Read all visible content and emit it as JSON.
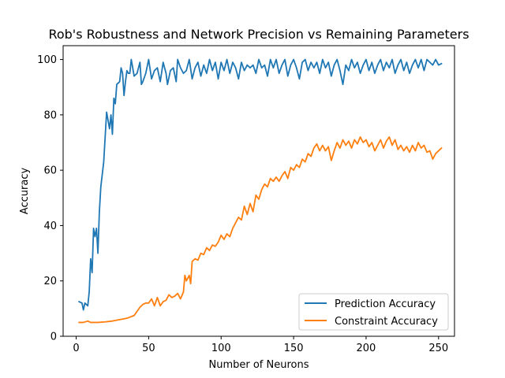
{
  "chart_data": {
    "type": "line",
    "title": "Rob's Robustness and Network Precision vs Remaining Parameters",
    "xlabel": "Number of Neurons",
    "ylabel": "Accuracy",
    "xlim": [
      -9,
      261
    ],
    "ylim": [
      0,
      105
    ],
    "xticks": [
      0,
      50,
      100,
      150,
      200,
      250
    ],
    "yticks": [
      0,
      20,
      40,
      60,
      80,
      100
    ],
    "grid": false,
    "legend_position": "lower-right",
    "series": [
      {
        "name": "Prediction Accuracy",
        "color": "#1f77b4",
        "points": [
          [
            2,
            12.5
          ],
          [
            4,
            12
          ],
          [
            5,
            9.5
          ],
          [
            6,
            12
          ],
          [
            8,
            11
          ],
          [
            9,
            16
          ],
          [
            10,
            28
          ],
          [
            11,
            23
          ],
          [
            12,
            39
          ],
          [
            13,
            36
          ],
          [
            14,
            39
          ],
          [
            15,
            30
          ],
          [
            16,
            45
          ],
          [
            17,
            54
          ],
          [
            19,
            63
          ],
          [
            20,
            72
          ],
          [
            21,
            81
          ],
          [
            22,
            78
          ],
          [
            23,
            75
          ],
          [
            24,
            80
          ],
          [
            25,
            73
          ],
          [
            26,
            86
          ],
          [
            27,
            84
          ],
          [
            28,
            91
          ],
          [
            30,
            92
          ],
          [
            31,
            97
          ],
          [
            32,
            95
          ],
          [
            33,
            87
          ],
          [
            34,
            92
          ],
          [
            35,
            96
          ],
          [
            36,
            95
          ],
          [
            37,
            95
          ],
          [
            38,
            100
          ],
          [
            40,
            94
          ],
          [
            42,
            95
          ],
          [
            44,
            99
          ],
          [
            45,
            91
          ],
          [
            46,
            92
          ],
          [
            48,
            95
          ],
          [
            50,
            100
          ],
          [
            52,
            93
          ],
          [
            54,
            96
          ],
          [
            56,
            97
          ],
          [
            58,
            92
          ],
          [
            60,
            99
          ],
          [
            62,
            95
          ],
          [
            63,
            91
          ],
          [
            65,
            96
          ],
          [
            67,
            97
          ],
          [
            69,
            92
          ],
          [
            70,
            100
          ],
          [
            72,
            97
          ],
          [
            74,
            95
          ],
          [
            76,
            96
          ],
          [
            78,
            100
          ],
          [
            80,
            93
          ],
          [
            82,
            97
          ],
          [
            84,
            99
          ],
          [
            86,
            94
          ],
          [
            88,
            98
          ],
          [
            90,
            95
          ],
          [
            92,
            100
          ],
          [
            94,
            96
          ],
          [
            96,
            99
          ],
          [
            98,
            93
          ],
          [
            100,
            99
          ],
          [
            102,
            96
          ],
          [
            104,
            100
          ],
          [
            106,
            95
          ],
          [
            108,
            99
          ],
          [
            110,
            97
          ],
          [
            112,
            93
          ],
          [
            114,
            99
          ],
          [
            116,
            96
          ],
          [
            118,
            98
          ],
          [
            120,
            97
          ],
          [
            122,
            98
          ],
          [
            124,
            95
          ],
          [
            126,
            100
          ],
          [
            128,
            97
          ],
          [
            130,
            98
          ],
          [
            132,
            94
          ],
          [
            134,
            100
          ],
          [
            136,
            97
          ],
          [
            138,
            100
          ],
          [
            140,
            95
          ],
          [
            142,
            98
          ],
          [
            144,
            100
          ],
          [
            146,
            94
          ],
          [
            148,
            98
          ],
          [
            150,
            100
          ],
          [
            152,
            97
          ],
          [
            154,
            93
          ],
          [
            156,
            99
          ],
          [
            158,
            100
          ],
          [
            160,
            96
          ],
          [
            162,
            99
          ],
          [
            164,
            97
          ],
          [
            166,
            99
          ],
          [
            168,
            95
          ],
          [
            170,
            100
          ],
          [
            172,
            97
          ],
          [
            174,
            99
          ],
          [
            176,
            94
          ],
          [
            178,
            98
          ],
          [
            180,
            100
          ],
          [
            182,
            96
          ],
          [
            184,
            91
          ],
          [
            186,
            98
          ],
          [
            188,
            96
          ],
          [
            190,
            100
          ],
          [
            192,
            97
          ],
          [
            194,
            99
          ],
          [
            196,
            95
          ],
          [
            198,
            98
          ],
          [
            200,
            100
          ],
          [
            202,
            96
          ],
          [
            204,
            99
          ],
          [
            206,
            95
          ],
          [
            208,
            98
          ],
          [
            210,
            100
          ],
          [
            212,
            96
          ],
          [
            214,
            99
          ],
          [
            216,
            97
          ],
          [
            218,
            100
          ],
          [
            220,
            95
          ],
          [
            222,
            98
          ],
          [
            224,
            100
          ],
          [
            226,
            96
          ],
          [
            228,
            99
          ],
          [
            230,
            95
          ],
          [
            232,
            98
          ],
          [
            234,
            100
          ],
          [
            236,
            97
          ],
          [
            238,
            100
          ],
          [
            240,
            96
          ],
          [
            242,
            100
          ],
          [
            244,
            99
          ],
          [
            246,
            98
          ],
          [
            248,
            100
          ],
          [
            250,
            98
          ],
          [
            252,
            98.5
          ]
        ]
      },
      {
        "name": "Constraint Accuracy",
        "color": "#ff7f0e",
        "points": [
          [
            2,
            5
          ],
          [
            5,
            5
          ],
          [
            8,
            5.5
          ],
          [
            10,
            5
          ],
          [
            15,
            5
          ],
          [
            20,
            5.2
          ],
          [
            25,
            5.5
          ],
          [
            30,
            6
          ],
          [
            35,
            6.5
          ],
          [
            40,
            7.5
          ],
          [
            42,
            9
          ],
          [
            44,
            10.5
          ],
          [
            46,
            11.5
          ],
          [
            48,
            12
          ],
          [
            50,
            12
          ],
          [
            52,
            13.5
          ],
          [
            54,
            11
          ],
          [
            56,
            14
          ],
          [
            58,
            11
          ],
          [
            60,
            12.5
          ],
          [
            62,
            13
          ],
          [
            64,
            15
          ],
          [
            66,
            14
          ],
          [
            68,
            14.5
          ],
          [
            70,
            15.5
          ],
          [
            72,
            13.5
          ],
          [
            74,
            16
          ],
          [
            75,
            22
          ],
          [
            76,
            20
          ],
          [
            78,
            22
          ],
          [
            79,
            19
          ],
          [
            80,
            27
          ],
          [
            82,
            28
          ],
          [
            84,
            27.5
          ],
          [
            86,
            30
          ],
          [
            88,
            29.5
          ],
          [
            90,
            32
          ],
          [
            92,
            31
          ],
          [
            94,
            33
          ],
          [
            96,
            32.5
          ],
          [
            98,
            34
          ],
          [
            100,
            36.5
          ],
          [
            102,
            35
          ],
          [
            104,
            37
          ],
          [
            106,
            36
          ],
          [
            108,
            39
          ],
          [
            110,
            41
          ],
          [
            112,
            43
          ],
          [
            114,
            42
          ],
          [
            116,
            47
          ],
          [
            118,
            44
          ],
          [
            120,
            48
          ],
          [
            122,
            45
          ],
          [
            124,
            51
          ],
          [
            126,
            49.5
          ],
          [
            128,
            53
          ],
          [
            130,
            55
          ],
          [
            132,
            54
          ],
          [
            134,
            57
          ],
          [
            136,
            56
          ],
          [
            138,
            57.5
          ],
          [
            140,
            56
          ],
          [
            142,
            58
          ],
          [
            144,
            59.5
          ],
          [
            146,
            57
          ],
          [
            148,
            61
          ],
          [
            150,
            60
          ],
          [
            152,
            62
          ],
          [
            154,
            61
          ],
          [
            156,
            64
          ],
          [
            158,
            63
          ],
          [
            160,
            66
          ],
          [
            162,
            65
          ],
          [
            164,
            68
          ],
          [
            166,
            69.5
          ],
          [
            168,
            67
          ],
          [
            170,
            69
          ],
          [
            172,
            67
          ],
          [
            174,
            68.5
          ],
          [
            176,
            63.5
          ],
          [
            178,
            67
          ],
          [
            180,
            70
          ],
          [
            182,
            68
          ],
          [
            184,
            71
          ],
          [
            186,
            69
          ],
          [
            188,
            70.5
          ],
          [
            190,
            68
          ],
          [
            192,
            71
          ],
          [
            194,
            69.5
          ],
          [
            196,
            72
          ],
          [
            198,
            70
          ],
          [
            200,
            71
          ],
          [
            202,
            68.5
          ],
          [
            204,
            70
          ],
          [
            206,
            67
          ],
          [
            208,
            69
          ],
          [
            210,
            71
          ],
          [
            212,
            68
          ],
          [
            214,
            70.5
          ],
          [
            216,
            72
          ],
          [
            218,
            69
          ],
          [
            220,
            71
          ],
          [
            222,
            67.5
          ],
          [
            224,
            69
          ],
          [
            226,
            67
          ],
          [
            228,
            68.5
          ],
          [
            230,
            66.5
          ],
          [
            232,
            69
          ],
          [
            234,
            67
          ],
          [
            236,
            70
          ],
          [
            238,
            68
          ],
          [
            240,
            69
          ],
          [
            242,
            66.5
          ],
          [
            244,
            67
          ],
          [
            246,
            64
          ],
          [
            248,
            66
          ],
          [
            250,
            67
          ],
          [
            252,
            68
          ]
        ]
      }
    ]
  }
}
